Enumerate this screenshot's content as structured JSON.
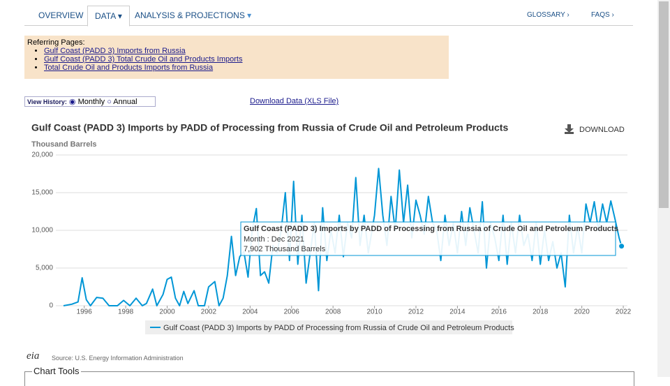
{
  "nav": {
    "tabs": [
      "OVERVIEW",
      "DATA",
      "ANALYSIS & PROJECTIONS"
    ],
    "right": [
      "GLOSSARY ›",
      "FAQS ›"
    ]
  },
  "referring": {
    "heading": "Referring Pages:",
    "links": [
      "Gulf Coast (PADD 3) Imports from Russia",
      "Gulf Coast (PADD 3) Total Crude Oil and Products Imports",
      "Total Crude Oil and Products Imports from Russia"
    ]
  },
  "view_history": {
    "label": "View History:",
    "options": [
      "Monthly",
      "Annual"
    ]
  },
  "download_data": "Download Data (XLS File)",
  "download_button": "DOWNLOAD",
  "source": "Source: U.S. Energy Information Administration",
  "logo": "eia",
  "chart_tools": "Chart Tools",
  "chart_data": {
    "type": "line",
    "title": "Gulf Coast (PADD 3) Imports by PADD of Processing from Russia of Crude Oil and Petroleum Products",
    "y_label": "Thousand Barrels",
    "x": [
      1995.0,
      1995.4,
      1995.7,
      1995.9,
      1996.1,
      1996.3,
      1996.6,
      1996.9,
      1997.2,
      1997.6,
      1997.9,
      1998.2,
      1998.5,
      1998.8,
      1999.0,
      1999.3,
      1999.5,
      1999.8,
      2000.0,
      2000.2,
      2000.4,
      2000.6,
      2000.8,
      2001.0,
      2001.3,
      2001.5,
      2001.8,
      2002.0,
      2002.3,
      2002.5,
      2002.7,
      2002.9,
      2003.1,
      2003.3,
      2003.5,
      2003.7,
      2003.9,
      2004.1,
      2004.3,
      2004.5,
      2004.7,
      2004.9,
      2005.1,
      2005.3,
      2005.5,
      2005.7,
      2005.9,
      2006.1,
      2006.3,
      2006.5,
      2006.7,
      2006.9,
      2007.1,
      2007.3,
      2007.5,
      2007.7,
      2007.9,
      2008.1,
      2008.3,
      2008.5,
      2008.7,
      2008.9,
      2009.1,
      2009.3,
      2009.5,
      2009.7,
      2010.0,
      2010.2,
      2010.4,
      2010.6,
      2010.8,
      2011.0,
      2011.2,
      2011.4,
      2011.6,
      2011.8,
      2012.0,
      2012.2,
      2012.4,
      2012.6,
      2012.8,
      2013.0,
      2013.2,
      2013.4,
      2013.6,
      2013.8,
      2014.0,
      2014.2,
      2014.4,
      2014.6,
      2014.8,
      2015.0,
      2015.2,
      2015.4,
      2015.6,
      2015.8,
      2016.0,
      2016.2,
      2016.4,
      2016.6,
      2016.8,
      2017.0,
      2017.2,
      2017.4,
      2017.6,
      2017.8,
      2018.0,
      2018.2,
      2018.4,
      2018.6,
      2018.8,
      2019.0,
      2019.2,
      2019.4,
      2019.6,
      2019.8,
      2020.0,
      2020.2,
      2020.4,
      2020.6,
      2020.8,
      2021.0,
      2021.2,
      2021.4,
      2021.6,
      2021.8,
      2021.917
    ],
    "series": [
      {
        "name": "Gulf Coast (PADD 3) Imports by PADD of Processing from Russia of Crude Oil and Petroleum Products",
        "color": "#0096d6",
        "values": [
          0,
          200,
          500,
          3700,
          800,
          0,
          1100,
          1000,
          0,
          0,
          700,
          0,
          1000,
          0,
          300,
          2200,
          0,
          1500,
          3500,
          3800,
          1000,
          0,
          1900,
          300,
          2000,
          0,
          0,
          2500,
          3200,
          0,
          1000,
          4000,
          9200,
          4000,
          6500,
          7200,
          3800,
          10000,
          12900,
          4000,
          4500,
          3000,
          8000,
          7000,
          10000,
          15000,
          6000,
          16500,
          5500,
          12000,
          3000,
          7000,
          11000,
          2000,
          13000,
          6000,
          10000,
          7000,
          12000,
          6500,
          11000,
          9000,
          17000,
          8000,
          12000,
          7000,
          12000,
          18200,
          12000,
          8000,
          14500,
          10000,
          18000,
          11000,
          16000,
          9000,
          14000,
          12000,
          9500,
          14500,
          11000,
          10000,
          6000,
          12000,
          8000,
          11000,
          7000,
          12500,
          8000,
          13000,
          10000,
          7000,
          13800,
          5000,
          11000,
          9000,
          6000,
          12000,
          5500,
          11000,
          7000,
          12000,
          8000,
          9500,
          6000,
          11000,
          5500,
          10000,
          6000,
          8500,
          5000,
          7000,
          2500,
          12000,
          7000,
          10500,
          7000,
          13500,
          11000,
          13800,
          10000,
          13500,
          11000,
          13900,
          11500,
          9000,
          7902
        ]
      }
    ],
    "xlim": [
      1994.63,
      2022.2
    ],
    "ylim": [
      0,
      20000
    ],
    "xticks": [
      1996,
      1998,
      2000,
      2002,
      2004,
      2006,
      2008,
      2010,
      2012,
      2014,
      2016,
      2018,
      2020,
      2022
    ],
    "yticks": [
      0,
      {
        "value": 5000,
        "label": "5,000"
      },
      {
        "value": 10000,
        "label": "10,000"
      },
      {
        "value": 15000,
        "label": "15,000"
      },
      {
        "value": 20000,
        "label": "20,000"
      }
    ],
    "grid": true,
    "tooltip": {
      "title": "Gulf Coast (PADD 3) Imports by PADD of Processing from Russia of Crude Oil and Petroleum Products",
      "month": "Month : Dec 2021",
      "value": "7,902 Thousand Barrels"
    }
  }
}
